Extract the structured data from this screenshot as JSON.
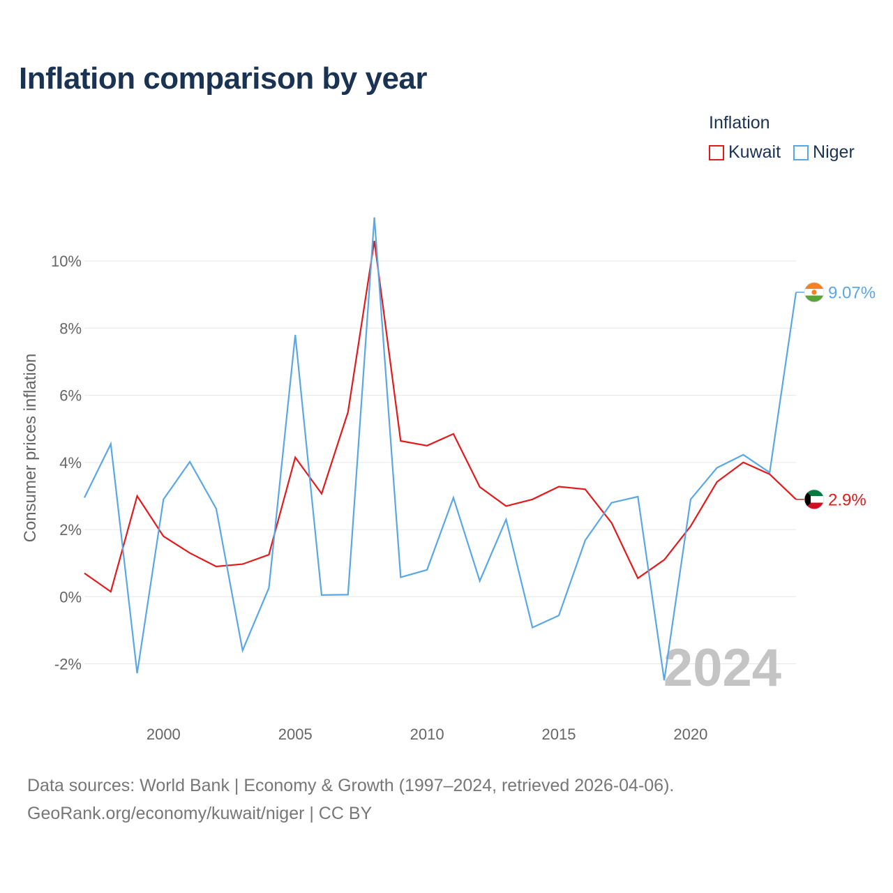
{
  "chart_data": {
    "type": "line",
    "title": "Inflation comparison by year",
    "legend_title": "Inflation",
    "ylabel": "Consumer prices inflation",
    "xlabel": "",
    "xlim": [
      1997,
      2024
    ],
    "ylim": [
      -2.8,
      11.5
    ],
    "x_ticks": [
      2000,
      2005,
      2010,
      2015,
      2020
    ],
    "y_ticks": [
      {
        "value": -2,
        "label": "-2%"
      },
      {
        "value": 0,
        "label": "0%"
      },
      {
        "value": 2,
        "label": "2%"
      },
      {
        "value": 4,
        "label": "4%"
      },
      {
        "value": 6,
        "label": "6%"
      },
      {
        "value": 8,
        "label": "8%"
      },
      {
        "value": 10,
        "label": "10%"
      }
    ],
    "grid": true,
    "year_watermark": "2024",
    "x": [
      1997,
      1998,
      1999,
      2000,
      2001,
      2002,
      2003,
      2004,
      2005,
      2006,
      2007,
      2008,
      2009,
      2010,
      2011,
      2012,
      2013,
      2014,
      2015,
      2016,
      2017,
      2018,
      2019,
      2020,
      2021,
      2022,
      2023,
      2024
    ],
    "series": [
      {
        "name": "Kuwait",
        "color": "#e31a1c",
        "end_label": "2.9%",
        "flag_icon": "kuwait-flag-icon",
        "values": [
          0.7,
          0.15,
          3.0,
          1.8,
          1.3,
          0.9,
          0.97,
          1.25,
          4.15,
          3.07,
          5.5,
          10.6,
          4.64,
          4.5,
          4.85,
          3.27,
          2.7,
          2.9,
          3.28,
          3.2,
          2.2,
          0.55,
          1.1,
          2.1,
          3.42,
          4.0,
          3.65,
          2.9
        ]
      },
      {
        "name": "Niger",
        "color": "#5aa7e6",
        "end_label": "9.07%",
        "flag_icon": "niger-flag-icon",
        "values": [
          2.95,
          4.55,
          -2.28,
          2.9,
          4.02,
          2.62,
          -1.6,
          0.26,
          7.8,
          0.05,
          0.06,
          11.3,
          0.58,
          0.8,
          2.95,
          0.47,
          2.3,
          -0.92,
          -0.56,
          1.68,
          2.8,
          2.98,
          -2.49,
          2.9,
          3.84,
          4.23,
          3.7,
          9.07
        ]
      }
    ]
  },
  "source": {
    "line1": "Data sources: World Bank | Economy & Growth (1997–2024, retrieved 2026-04-06).",
    "line2": "GeoRank.org/economy/kuwait/niger | CC BY"
  }
}
